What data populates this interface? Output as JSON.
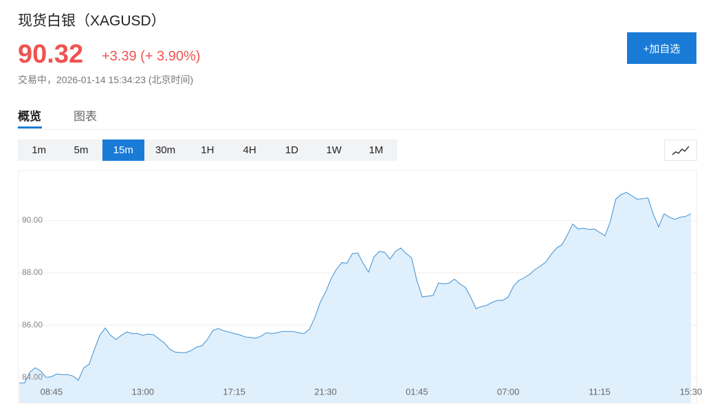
{
  "header": {
    "title": "现货白银（XAGUSD）",
    "price": "90.32",
    "change": "+3.39 (+ 3.90%)",
    "status": "交易中，2026-01-14 15:34:23 (北京时间)",
    "button": "+加自选"
  },
  "tabs": [
    "概览",
    "图表"
  ],
  "intervals": [
    "1m",
    "5m",
    "15m",
    "30m",
    "1H",
    "4H",
    "1D",
    "1W",
    "1M"
  ],
  "chart_data": {
    "type": "area",
    "color": "#3b8fd1",
    "fill": "#e0effc",
    "grid": true,
    "categories": [
      null,
      null,
      null,
      null,
      null,
      null,
      "08:45",
      null,
      null,
      null,
      null,
      null,
      null,
      null,
      null,
      null,
      null,
      null,
      null,
      null,
      null,
      null,
      null,
      "13:00",
      null,
      null,
      null,
      null,
      null,
      null,
      null,
      null,
      null,
      null,
      null,
      null,
      null,
      null,
      null,
      null,
      "17:15",
      null,
      null,
      null,
      null,
      null,
      null,
      null,
      null,
      null,
      null,
      null,
      null,
      null,
      null,
      null,
      null,
      "21:30",
      null,
      null,
      null,
      null,
      null,
      null,
      null,
      null,
      null,
      null,
      null,
      null,
      null,
      null,
      null,
      null,
      "01:45",
      null,
      null,
      null,
      null,
      null,
      null,
      null,
      null,
      null,
      null,
      null,
      null,
      null,
      null,
      null,
      null,
      "07:00",
      null,
      null,
      null,
      null,
      null,
      null,
      null,
      null,
      null,
      null,
      null,
      null,
      null,
      null,
      null,
      null,
      "11:15",
      null,
      null,
      null,
      null,
      null,
      null,
      null,
      null,
      null,
      null,
      null,
      null,
      null,
      null,
      null,
      null,
      "15:30"
    ],
    "values": [
      83.79,
      83.79,
      84.21,
      84.37,
      84.24,
      84.0,
      84.03,
      84.13,
      84.11,
      84.11,
      84.05,
      83.89,
      84.37,
      84.5,
      85.08,
      85.61,
      85.89,
      85.61,
      85.45,
      85.61,
      85.74,
      85.68,
      85.68,
      85.61,
      85.66,
      85.63,
      85.47,
      85.32,
      85.08,
      84.97,
      84.95,
      84.95,
      85.03,
      85.16,
      85.21,
      85.45,
      85.79,
      85.87,
      85.79,
      85.74,
      85.68,
      85.63,
      85.55,
      85.53,
      85.5,
      85.58,
      85.71,
      85.68,
      85.71,
      85.76,
      85.76,
      85.76,
      85.71,
      85.68,
      85.84,
      86.29,
      86.87,
      87.26,
      87.76,
      88.13,
      88.39,
      88.37,
      88.74,
      88.76,
      88.37,
      88.03,
      88.61,
      88.82,
      88.79,
      88.53,
      88.82,
      88.95,
      88.74,
      88.58,
      87.71,
      87.08,
      87.11,
      87.13,
      87.61,
      87.58,
      87.61,
      87.76,
      87.58,
      87.45,
      87.08,
      86.63,
      86.71,
      86.76,
      86.87,
      86.95,
      86.95,
      87.08,
      87.5,
      87.71,
      87.82,
      87.95,
      88.13,
      88.26,
      88.42,
      88.71,
      88.95,
      89.08,
      89.45,
      89.87,
      89.68,
      89.71,
      89.66,
      89.68,
      89.55,
      89.42,
      89.97,
      90.82,
      91.0,
      91.08,
      90.95,
      90.82,
      90.84,
      90.87,
      90.24,
      89.76,
      90.26,
      90.13,
      90.05,
      90.13,
      90.16,
      90.26
    ],
    "ylim": [
      83.03,
      91.92
    ],
    "yticks": [
      {
        "value": 84,
        "label": "84.00"
      },
      {
        "value": 86,
        "label": "86.00"
      },
      {
        "value": 88,
        "label": "88.00"
      },
      {
        "value": 90,
        "label": "90.00"
      }
    ]
  }
}
